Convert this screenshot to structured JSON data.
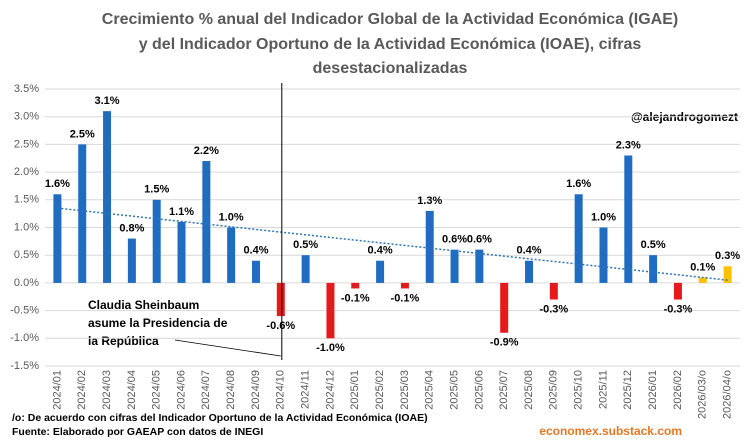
{
  "chart_data": {
    "type": "bar",
    "title": [
      "Crecimiento % anual del Indicador Global de la Actividad Económica (IGAE)",
      "y del Indicador Oportuno de la Actividad Económica (IOAE), cifras",
      "desestacionalizadas"
    ],
    "categories": [
      "2024/01",
      "2024/02",
      "2024/03",
      "2024/04",
      "2024/05",
      "2024/06",
      "2024/07",
      "2024/08",
      "2024/09",
      "2024/10",
      "2024/11",
      "2024/12",
      "2025/01",
      "2025/02",
      "2025/03",
      "2025/04",
      "2025/05",
      "2025/06",
      "2025/07",
      "2025/08",
      "2025/09",
      "2025/10",
      "2025/11",
      "2025/12",
      "2026/01",
      "2026/02",
      "2026/03/o",
      "2026/04/o"
    ],
    "values": [
      1.6,
      2.5,
      3.1,
      0.8,
      1.5,
      1.1,
      2.2,
      1.0,
      0.4,
      -0.6,
      0.5,
      -1.0,
      -0.1,
      0.4,
      -0.1,
      1.3,
      0.6,
      0.6,
      -0.9,
      0.4,
      -0.3,
      1.6,
      1.0,
      2.3,
      0.5,
      -0.3,
      0.1,
      0.3
    ],
    "value_labels": [
      "1.6%",
      "2.5%",
      "3.1%",
      "0.8%",
      "1.5%",
      "1.1%",
      "2.2%",
      "1.0%",
      "0.4%",
      "-0.6%",
      "0.5%",
      "-1.0%",
      "-0.1%",
      "0.4%",
      "-0.1%",
      "1.3%",
      "0.6%",
      "0.6%",
      "-0.9%",
      "0.4%",
      "-0.3%",
      "1.6%",
      "1.0%",
      "2.3%",
      "0.5%",
      "-0.3%",
      "0.1%",
      "0.3%"
    ],
    "colors": [
      "#1f6cc0",
      "#1f6cc0",
      "#1f6cc0",
      "#1f6cc0",
      "#1f6cc0",
      "#1f6cc0",
      "#1f6cc0",
      "#1f6cc0",
      "#1f6cc0",
      "#e41a1c",
      "#1f6cc0",
      "#e41a1c",
      "#e41a1c",
      "#1f6cc0",
      "#e41a1c",
      "#1f6cc0",
      "#1f6cc0",
      "#1f6cc0",
      "#e41a1c",
      "#1f6cc0",
      "#e41a1c",
      "#1f6cc0",
      "#1f6cc0",
      "#1f6cc0",
      "#1f6cc0",
      "#e41a1c",
      "#ffc000",
      "#ffc000"
    ],
    "trendline": [
      1.35,
      0.05
    ],
    "trend_color": "#2e75b6",
    "ylim": [
      -1.5,
      3.5
    ],
    "yticks": [
      {
        "value": -1.5,
        "label": "-1.5%"
      },
      {
        "value": -1.0,
        "label": "-1.0%"
      },
      {
        "value": -0.5,
        "label": "-0.5%"
      },
      {
        "value": 0,
        "label": "0.0%"
      },
      {
        "value": 0.5,
        "label": "0.5%"
      },
      {
        "value": 1.0,
        "label": "1.0%"
      },
      {
        "value": 1.5,
        "label": "1.5%"
      },
      {
        "value": 2.0,
        "label": "2.0%"
      },
      {
        "value": 2.5,
        "label": "2.5%"
      },
      {
        "value": 3.0,
        "label": "3.0%"
      },
      {
        "value": 3.5,
        "label": "3.5%"
      }
    ],
    "grid": true,
    "annotations": {
      "handle": "@alejandrogomezt",
      "event": [
        "Claudia Sheinbaum",
        "asume la Presidencia de",
        "la República"
      ],
      "event_category": 9
    },
    "notes": [
      "/o: De acuerdo con cifras del Indicador Oportuno de la Actividad Económica (IOAE)",
      "Fuente: Elaborado por GAEAP con datos de INEGI"
    ],
    "source_url": "economex.substack.com"
  }
}
